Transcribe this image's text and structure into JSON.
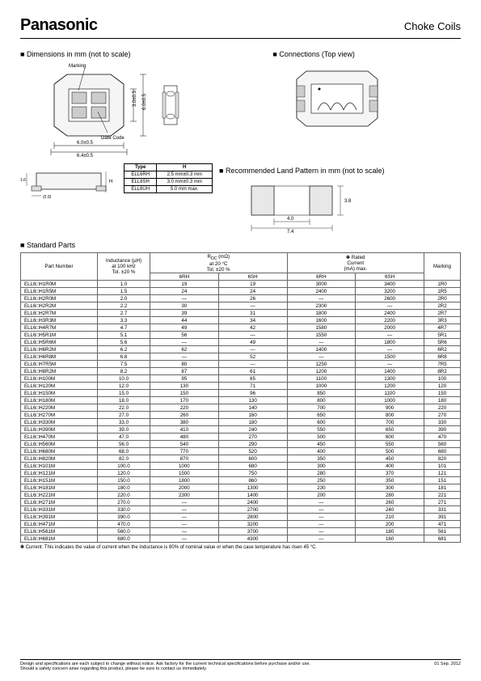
{
  "header": {
    "logo": "Panasonic",
    "title": "Choke Coils"
  },
  "sections": {
    "dimensions": "Dimensions in mm (not to scale)",
    "connections": "Connections (Top view)",
    "land": "Recommended Land Pattern in mm (not to scale)",
    "standard": "Standard Parts"
  },
  "dim_labels": {
    "marking": "Marking",
    "date_code": "Date Code",
    "w_outer": "6.4±0.5",
    "w_inner": "6.0±0.5",
    "h_inner": "3.0±0.5",
    "h_outer": "6.0±0.5",
    "side_gap": "(0.9)",
    "side_step": "1.6"
  },
  "h_table": {
    "headers": [
      "Type",
      "H"
    ],
    "rows": [
      [
        "ELL6RH",
        "2.5 mm±0.3 mm"
      ],
      [
        "ELL6SH",
        "3.0 mm±0.3 mm"
      ],
      [
        "ELL6UH",
        "5.0 mm max."
      ]
    ]
  },
  "land_labels": {
    "h": "3.8",
    "w_inner": "4.0",
    "w_outer": "7.4"
  },
  "parts_table": {
    "headers": {
      "pn": "Part Number",
      "inductance": "Inductance (µH)\nat 100 kHz\nTol. ±20 %",
      "rdc": "R<sub>DC</sub> (mΩ)\nat 20 °C\nTol. ±20 %",
      "rdc_sub": [
        "6RH",
        "6SH"
      ],
      "rated": "✽ Rated\nCurrent\n(mA) max.",
      "rated_sub": [
        "6RH",
        "6SH"
      ],
      "marking": "Marking"
    },
    "rows": [
      [
        "ELL6□H1R0M",
        "1.0",
        "19",
        "19",
        "3000",
        "3400",
        "1R0"
      ],
      [
        "ELL6□H1R5M",
        "1.5",
        "24",
        "24",
        "2400",
        "3200",
        "1R5"
      ],
      [
        "ELL6□H2R0M",
        "2.0",
        "—",
        "26",
        "—",
        "2600",
        "2R0"
      ],
      [
        "ELL6□H2R2M",
        "2.2",
        "30",
        "—",
        "2300",
        "—",
        "2R2"
      ],
      [
        "ELL6□H2R7M",
        "2.7",
        "39",
        "31",
        "1800",
        "2400",
        "2R7"
      ],
      [
        "ELL6□H3R3M",
        "3.3",
        "44",
        "34",
        "1600",
        "2200",
        "3R3"
      ],
      [
        "ELL6□H4R7M",
        "4.7",
        "49",
        "42",
        "1580",
        "2000",
        "4R7"
      ],
      [
        "ELL6□H5R1M",
        "5.1",
        "56",
        "—",
        "1550",
        "—",
        "5R1"
      ],
      [
        "ELL6□H5R6M",
        "5.6",
        "—",
        "49",
        "—",
        "1800",
        "5R6"
      ],
      [
        "ELL6□H6R2M",
        "6.2",
        "62",
        "—",
        "1400",
        "—",
        "6R2"
      ],
      [
        "ELL6□H6R8M",
        "6.8",
        "—",
        "52",
        "—",
        "1500",
        "6R8"
      ],
      [
        "ELL6□H7R5M",
        "7.5",
        "80",
        "—",
        "1250",
        "—",
        "7R5"
      ],
      [
        "ELL6□H8R2M",
        "8.2",
        "87",
        "61",
        "1200",
        "1400",
        "8R2"
      ],
      [
        "ELL6□H100M",
        "10.0",
        "95",
        "65",
        "1100",
        "1300",
        "100"
      ],
      [
        "ELL6□H120M",
        "12.0",
        "130",
        "71",
        "1000",
        "1200",
        "120"
      ],
      [
        "ELL6□H150M",
        "15.0",
        "150",
        "96",
        "850",
        "1100",
        "150"
      ],
      [
        "ELL6□H180M",
        "18.0",
        "170",
        "130",
        "800",
        "1000",
        "180"
      ],
      [
        "ELL6□H220M",
        "22.0",
        "220",
        "140",
        "700",
        "900",
        "220"
      ],
      [
        "ELL6□H270M",
        "27.0",
        "260",
        "160",
        "650",
        "800",
        "270"
      ],
      [
        "ELL6□H330M",
        "33.0",
        "380",
        "180",
        "600",
        "700",
        "330"
      ],
      [
        "ELL6□H390M",
        "39.0",
        "410",
        "240",
        "550",
        "650",
        "390"
      ],
      [
        "ELL6□H470M",
        "47.0",
        "480",
        "270",
        "500",
        "600",
        "470"
      ],
      [
        "ELL6□H560M",
        "56.0",
        "540",
        "290",
        "450",
        "550",
        "560"
      ],
      [
        "ELL6□H680M",
        "68.0",
        "770",
        "520",
        "400",
        "500",
        "680"
      ],
      [
        "ELL6□H820M",
        "82.0",
        "870",
        "600",
        "350",
        "450",
        "820"
      ],
      [
        "ELL6□H101M",
        "100.0",
        "1000",
        "680",
        "300",
        "400",
        "101"
      ],
      [
        "ELL6□H121M",
        "120.0",
        "1500",
        "750",
        "280",
        "370",
        "121"
      ],
      [
        "ELL6□H151M",
        "150.0",
        "1800",
        "860",
        "250",
        "350",
        "151"
      ],
      [
        "ELL6□H181M",
        "180.0",
        "2000",
        "1300",
        "230",
        "300",
        "181"
      ],
      [
        "ELL6□H221M",
        "220.0",
        "2300",
        "1400",
        "200",
        "280",
        "221"
      ],
      [
        "ELL6□H271M",
        "270.0",
        "—",
        "2400",
        "—",
        "260",
        "271"
      ],
      [
        "ELL6□H331M",
        "330.0",
        "—",
        "2700",
        "—",
        "240",
        "331"
      ],
      [
        "ELL6□H391M",
        "390.0",
        "—",
        "2800",
        "—",
        "210",
        "391"
      ],
      [
        "ELL6□H471M",
        "470.0",
        "—",
        "3200",
        "—",
        "200",
        "471"
      ],
      [
        "ELL6□H561M",
        "560.0",
        "—",
        "3700",
        "—",
        "180",
        "561"
      ],
      [
        "ELL6□H681M",
        "680.0",
        "—",
        "4300",
        "—",
        "160",
        "681"
      ]
    ]
  },
  "footnote": "✽ Current: This indicates the value of current when the inductance is 80% of nominal value or when the case temperature has risen 45 °C.",
  "footer": {
    "line1": "Design and specifications are each subject to change without notice. Ask factory for the current technical specifications before purchase and/or use.",
    "line2": "Should a safety concern arise regarding this product, please be sure to contact us immediately.",
    "date": "01 Sep. 2012"
  }
}
